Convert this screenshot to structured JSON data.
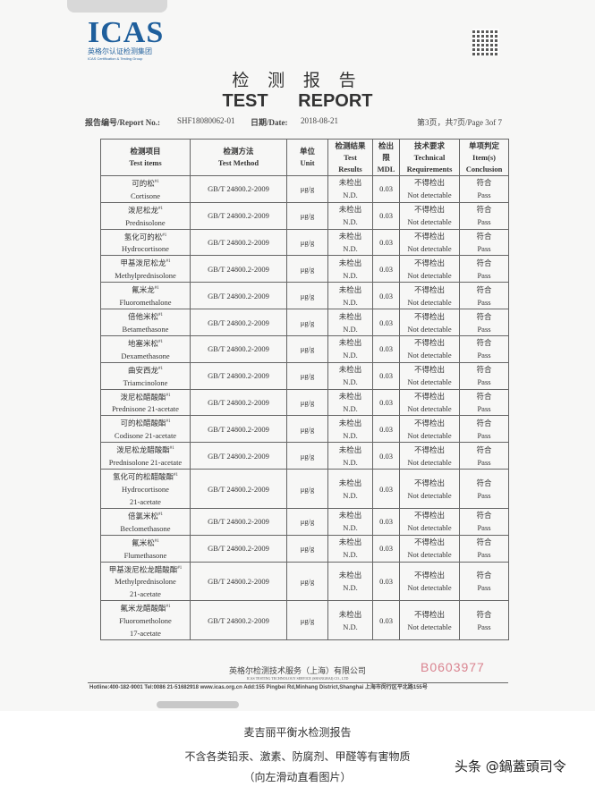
{
  "doc": {
    "logo": {
      "text": "ICAS",
      "cn": "英格尔认证检测集团",
      "en": "ICAS Certification & Testing Group"
    },
    "title_cn": "检 测 报 告",
    "title_en": "TEST REPORT",
    "report_no_label": "报告编号/Report No.:",
    "report_no": "SHF18080062-01",
    "date_label": "日期/Date:",
    "date": "2018-08-21",
    "page": "第3页，共7页/Page 3of 7",
    "headers": [
      [
        "检测项目",
        "Test items"
      ],
      [
        "检测方法",
        "Test Method"
      ],
      [
        "单位",
        "Unit"
      ],
      [
        "检测结果",
        "Test",
        "Results"
      ],
      [
        "检出",
        "限",
        "MDL"
      ],
      [
        "技术要求",
        "Technical",
        "Requirements"
      ],
      [
        "单项判定",
        "Item(s)",
        "Conclusion"
      ]
    ],
    "rows": [
      {
        "cn": "可的松",
        "en": [
          "Cortisone"
        ],
        "method": "GB/T 24800.2-2009",
        "unit": "μg/g",
        "res_cn": "未检出",
        "res_en": "N.D.",
        "mdl": "0.03",
        "req_cn": "不得检出",
        "req_en": "Not detectable",
        "con_cn": "符合",
        "con_en": "Pass"
      },
      {
        "cn": "泼尼松龙",
        "en": [
          "Prednisolone"
        ],
        "method": "GB/T 24800.2-2009",
        "unit": "μg/g",
        "res_cn": "未检出",
        "res_en": "N.D.",
        "mdl": "0.03",
        "req_cn": "不得检出",
        "req_en": "Not detectable",
        "con_cn": "符合",
        "con_en": "Pass"
      },
      {
        "cn": "氢化可的松",
        "en": [
          "Hydrocortisone"
        ],
        "method": "GB/T 24800.2-2009",
        "unit": "μg/g",
        "res_cn": "未检出",
        "res_en": "N.D.",
        "mdl": "0.03",
        "req_cn": "不得检出",
        "req_en": "Not detectable",
        "con_cn": "符合",
        "con_en": "Pass"
      },
      {
        "cn": "甲基泼尼松龙",
        "en": [
          "Methylprednisolone"
        ],
        "method": "GB/T 24800.2-2009",
        "unit": "μg/g",
        "res_cn": "未检出",
        "res_en": "N.D.",
        "mdl": "0.03",
        "req_cn": "不得检出",
        "req_en": "Not detectable",
        "con_cn": "符合",
        "con_en": "Pass"
      },
      {
        "cn": "氟米龙",
        "en": [
          "Fluoromethalone"
        ],
        "method": "GB/T 24800.2-2009",
        "unit": "μg/g",
        "res_cn": "未检出",
        "res_en": "N.D.",
        "mdl": "0.03",
        "req_cn": "不得检出",
        "req_en": "Not detectable",
        "con_cn": "符合",
        "con_en": "Pass"
      },
      {
        "cn": "倍他米松",
        "en": [
          "Betamethasone"
        ],
        "method": "GB/T 24800.2-2009",
        "unit": "μg/g",
        "res_cn": "未检出",
        "res_en": "N.D.",
        "mdl": "0.03",
        "req_cn": "不得检出",
        "req_en": "Not detectable",
        "con_cn": "符合",
        "con_en": "Pass"
      },
      {
        "cn": "地塞米松",
        "en": [
          "Dexamethasone"
        ],
        "method": "GB/T 24800.2-2009",
        "unit": "μg/g",
        "res_cn": "未检出",
        "res_en": "N.D.",
        "mdl": "0.03",
        "req_cn": "不得检出",
        "req_en": "Not detectable",
        "con_cn": "符合",
        "con_en": "Pass"
      },
      {
        "cn": "曲安西龙",
        "en": [
          "Triamcinolone"
        ],
        "method": "GB/T 24800.2-2009",
        "unit": "μg/g",
        "res_cn": "未检出",
        "res_en": "N.D.",
        "mdl": "0.03",
        "req_cn": "不得检出",
        "req_en": "Not detectable",
        "con_cn": "符合",
        "con_en": "Pass"
      },
      {
        "cn": "泼尼松醋酸酯",
        "en": [
          "Prednisone 21-acetate"
        ],
        "method": "GB/T 24800.2-2009",
        "unit": "μg/g",
        "res_cn": "未检出",
        "res_en": "N.D.",
        "mdl": "0.03",
        "req_cn": "不得检出",
        "req_en": "Not detectable",
        "con_cn": "符合",
        "con_en": "Pass"
      },
      {
        "cn": "可的松醋酸酯",
        "en": [
          "Codisone 21-acetate"
        ],
        "method": "GB/T 24800.2-2009",
        "unit": "μg/g",
        "res_cn": "未检出",
        "res_en": "N.D.",
        "mdl": "0.03",
        "req_cn": "不得检出",
        "req_en": "Not detectable",
        "con_cn": "符合",
        "con_en": "Pass"
      },
      {
        "cn": "泼尼松龙醋酸酯",
        "en": [
          "Prednisolone 21-acetate"
        ],
        "method": "GB/T 24800.2-2009",
        "unit": "μg/g",
        "res_cn": "未检出",
        "res_en": "N.D.",
        "mdl": "0.03",
        "req_cn": "不得检出",
        "req_en": "Not detectable",
        "con_cn": "符合",
        "con_en": "Pass"
      },
      {
        "cn": "氢化可的松醋酸酯",
        "en": [
          "Hydrocortisone",
          "21-acetate"
        ],
        "method": "GB/T 24800.2-2009",
        "unit": "μg/g",
        "res_cn": "未检出",
        "res_en": "N.D.",
        "mdl": "0.03",
        "req_cn": "不得检出",
        "req_en": "Not detectable",
        "con_cn": "符合",
        "con_en": "Pass"
      },
      {
        "cn": "倍氯米松",
        "en": [
          "Beclomethasone"
        ],
        "method": "GB/T 24800.2-2009",
        "unit": "μg/g",
        "res_cn": "未检出",
        "res_en": "N.D.",
        "mdl": "0.03",
        "req_cn": "不得检出",
        "req_en": "Not detectable",
        "con_cn": "符合",
        "con_en": "Pass"
      },
      {
        "cn": "氟米松",
        "en": [
          "Flumethasone"
        ],
        "method": "GB/T 24800.2-2009",
        "unit": "μg/g",
        "res_cn": "未检出",
        "res_en": "N.D.",
        "mdl": "0.03",
        "req_cn": "不得检出",
        "req_en": "Not detectable",
        "con_cn": "符合",
        "con_en": "Pass"
      },
      {
        "cn": "甲基泼尼松龙醋酸酯",
        "en": [
          "Methylprednisolone",
          "21-acetate"
        ],
        "method": "GB/T 24800.2-2009",
        "unit": "μg/g",
        "res_cn": "未检出",
        "res_en": "N.D.",
        "mdl": "0.03",
        "req_cn": "不得检出",
        "req_en": "Not detectable",
        "con_cn": "符合",
        "con_en": "Pass"
      },
      {
        "cn": "氟米龙醋酸酯",
        "en": [
          "Fluorometholone",
          "17-acetate"
        ],
        "method": "GB/T 24800.2-2009",
        "unit": "μg/g",
        "res_cn": "未检出",
        "res_en": "N.D.",
        "mdl": "0.03",
        "req_cn": "不得检出",
        "req_en": "Not detectable",
        "con_cn": "符合",
        "con_en": "Pass"
      }
    ],
    "superscript": "#1",
    "company_cn": "英格尔检测技术服务（上海）有限公司",
    "company_en": "ICAS TESTING TECHNOLOGY SERVICE (SHANGHAI) CO., LTD",
    "contact": "Hotline:400-182-9001  Tel:0086 21-51682918  www.icas.org.cn   Add:155 Pingbei Rd,Minhang District,Shanghai 上海市闵行区平北路155号",
    "serial": "B0603977"
  },
  "caption": [
    "麦吉丽平衡水检测报告",
    "不含各类铅汞、激素、防腐剂、甲醛等有害物质",
    "（向左滑动直看图片）"
  ],
  "watermark": "头条 @鍋蓋頭司令"
}
